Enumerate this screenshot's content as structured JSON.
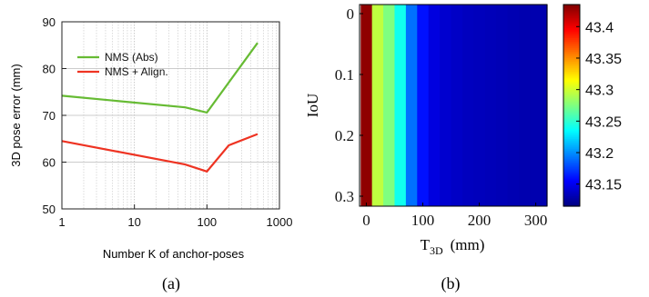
{
  "chart_data": [
    {
      "type": "line",
      "panel_label": "(a)",
      "xlabel": "Number K of anchor-poses",
      "ylabel": "3D pose error (mm)",
      "x_scale": "log",
      "xlim": [
        1,
        1000
      ],
      "ylim": [
        50,
        90
      ],
      "x_ticks": [
        "1",
        "10",
        "100",
        "1000"
      ],
      "y_ticks": [
        "50",
        "60",
        "70",
        "80",
        "90"
      ],
      "grid": true,
      "legend_position": "top-left",
      "series": [
        {
          "name": "NMS (Abs)",
          "color": "#66bb33",
          "x": [
            1,
            50,
            100,
            500
          ],
          "y": [
            74.2,
            71.7,
            70.6,
            85.5
          ]
        },
        {
          "name": "NMS + Align.",
          "color": "#ee3322",
          "x": [
            1,
            50,
            100,
            200,
            500
          ],
          "y": [
            64.5,
            59.5,
            58.0,
            63.6,
            66.0
          ]
        }
      ]
    },
    {
      "type": "heatmap",
      "panel_label": "(b)",
      "xlabel_main": "T",
      "xlabel_sub": "3D",
      "xlabel_unit": "(mm)",
      "ylabel": "IoU",
      "xlim": [
        0,
        320
      ],
      "ylim": [
        0,
        0.32
      ],
      "x_ticks": [
        "0",
        "100",
        "200",
        "300"
      ],
      "y_ticks": [
        "0",
        "0.1",
        "0.2",
        "0.3"
      ],
      "column_width": 20,
      "columns_x_start": [
        -10,
        10,
        30,
        50,
        70,
        90,
        110,
        130,
        150,
        170,
        190,
        210,
        230,
        250,
        270,
        290,
        310
      ],
      "column_values": [
        43.43,
        43.295,
        43.275,
        43.24,
        43.19,
        43.16,
        43.145,
        43.14,
        43.137,
        43.135,
        43.134,
        43.133,
        43.132,
        43.131,
        43.13,
        43.13,
        43.13
      ],
      "colorbar": {
        "min": 43.115,
        "max": 43.435,
        "ticks": [
          "43.4",
          "43.35",
          "43.3",
          "43.25",
          "43.2",
          "43.15"
        ]
      },
      "colormap": "jet"
    }
  ]
}
